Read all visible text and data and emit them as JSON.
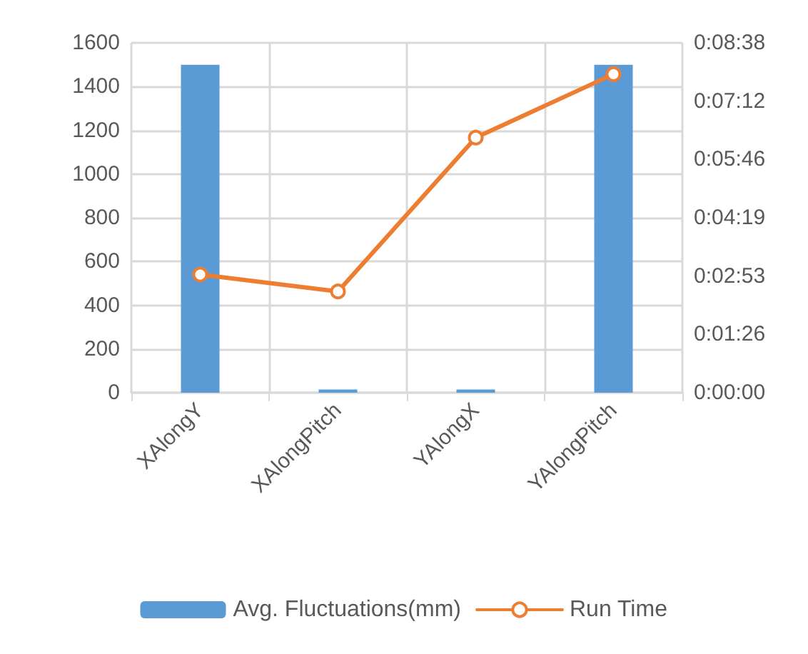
{
  "chart_data": {
    "type": "bar",
    "categories": [
      "XAlongY",
      "XAlongPitch",
      "YAlongX",
      "YAlongPitch"
    ],
    "series": [
      {
        "name": "Avg. Fluctuations(mm)",
        "color": "#5b9bd5",
        "values": [
          1500,
          15,
          15,
          1500
        ]
      },
      {
        "name": "Run Time",
        "type": "line",
        "axis": "y2",
        "color": "#ed7d31",
        "values": [
          175,
          150,
          378,
          472
        ]
      }
    ],
    "ylim": [
      0,
      1600
    ],
    "yticks": [
      0,
      200,
      400,
      600,
      800,
      1000,
      1200,
      1400,
      1600
    ],
    "y2lim": [
      0,
      518.4
    ],
    "y2ticks": [
      {
        "value": 0,
        "label": "0:00:00"
      },
      {
        "value": 86.4,
        "label": "0:01:26"
      },
      {
        "value": 172.8,
        "label": "0:02:53"
      },
      {
        "value": 259.2,
        "label": "0:04:19"
      },
      {
        "value": 345.6,
        "label": "0:05:46"
      },
      {
        "value": 432,
        "label": "0:07:12"
      },
      {
        "value": 518.4,
        "label": "0:08:38"
      }
    ],
    "grid": true,
    "legend": "bottom",
    "marker": "circle"
  }
}
